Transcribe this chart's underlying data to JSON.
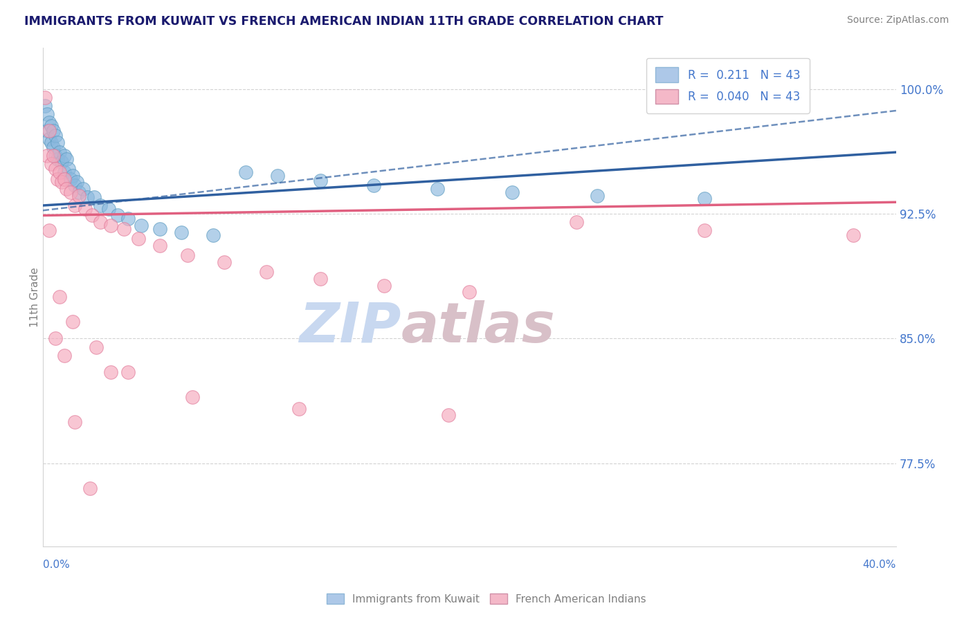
{
  "title": "IMMIGRANTS FROM KUWAIT VS FRENCH AMERICAN INDIAN 11TH GRADE CORRELATION CHART",
  "source": "Source: ZipAtlas.com",
  "ylabel": "11th Grade",
  "yaxis_labels": [
    "100.0%",
    "92.5%",
    "85.0%",
    "77.5%"
  ],
  "yaxis_values": [
    1.0,
    0.925,
    0.85,
    0.775
  ],
  "x_min": 0.0,
  "x_max": 0.4,
  "y_min": 0.725,
  "y_max": 1.025,
  "R_blue": 0.211,
  "N_blue": 43,
  "R_pink": 0.04,
  "N_pink": 43,
  "blue_color": "#8ab8de",
  "blue_edge_color": "#5a9abf",
  "pink_color": "#f5a8bc",
  "pink_edge_color": "#e07898",
  "blue_line_color": "#3060a0",
  "pink_line_color": "#e06080",
  "legend_blue_color": "#adc8e8",
  "legend_pink_color": "#f4b8c8",
  "title_color": "#1a1a6e",
  "axis_label_color": "#4477cc",
  "watermark_zip_color": "#c8d8f0",
  "watermark_atlas_color": "#d8c0c8",
  "blue_x": [
    0.001,
    0.002,
    0.002,
    0.003,
    0.003,
    0.004,
    0.004,
    0.005,
    0.005,
    0.006,
    0.006,
    0.007,
    0.007,
    0.008,
    0.009,
    0.01,
    0.01,
    0.011,
    0.012,
    0.013,
    0.014,
    0.015,
    0.016,
    0.017,
    0.019,
    0.021,
    0.024,
    0.027,
    0.031,
    0.035,
    0.04,
    0.046,
    0.055,
    0.065,
    0.08,
    0.095,
    0.11,
    0.13,
    0.155,
    0.185,
    0.22,
    0.26,
    0.31
  ],
  "blue_y": [
    0.99,
    0.985,
    0.975,
    0.98,
    0.97,
    0.978,
    0.968,
    0.975,
    0.965,
    0.972,
    0.96,
    0.968,
    0.958,
    0.962,
    0.956,
    0.96,
    0.95,
    0.958,
    0.952,
    0.946,
    0.948,
    0.942,
    0.944,
    0.938,
    0.94,
    0.935,
    0.935,
    0.93,
    0.928,
    0.924,
    0.922,
    0.918,
    0.916,
    0.914,
    0.912,
    0.95,
    0.948,
    0.945,
    0.942,
    0.94,
    0.938,
    0.936,
    0.934
  ],
  "pink_x": [
    0.001,
    0.002,
    0.003,
    0.004,
    0.005,
    0.006,
    0.007,
    0.008,
    0.009,
    0.01,
    0.011,
    0.013,
    0.015,
    0.017,
    0.02,
    0.023,
    0.027,
    0.032,
    0.038,
    0.045,
    0.055,
    0.068,
    0.085,
    0.105,
    0.13,
    0.16,
    0.2,
    0.25,
    0.31,
    0.38,
    0.003,
    0.006,
    0.01,
    0.015,
    0.022,
    0.032,
    0.008,
    0.014,
    0.025,
    0.04,
    0.07,
    0.12,
    0.19
  ],
  "pink_y": [
    0.995,
    0.96,
    0.975,
    0.955,
    0.96,
    0.952,
    0.946,
    0.95,
    0.944,
    0.946,
    0.94,
    0.938,
    0.93,
    0.936,
    0.928,
    0.924,
    0.92,
    0.918,
    0.916,
    0.91,
    0.906,
    0.9,
    0.896,
    0.89,
    0.886,
    0.882,
    0.878,
    0.92,
    0.915,
    0.912,
    0.915,
    0.85,
    0.84,
    0.8,
    0.76,
    0.83,
    0.875,
    0.86,
    0.845,
    0.83,
    0.815,
    0.808,
    0.804
  ]
}
